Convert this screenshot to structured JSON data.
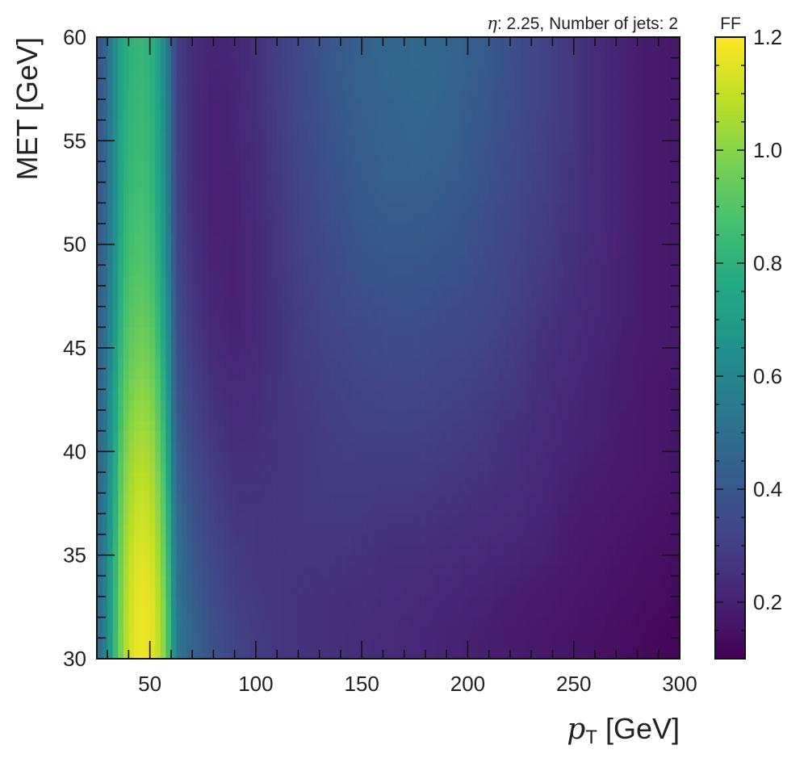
{
  "chart_data": {
    "type": "heatmap",
    "annotation": {
      "eta_symbol": "η",
      "eta_text": ": 2.25, Number of jets: 2"
    },
    "xlabel": {
      "symbol": "p",
      "subscript": "T",
      "unit": " [GeV]"
    },
    "ylabel": "MET [GeV]",
    "xlim": [
      25,
      300
    ],
    "ylim": [
      30,
      60
    ],
    "xticks": [
      50,
      100,
      150,
      200,
      250,
      300
    ],
    "xtick_labels": [
      "50",
      "100",
      "150",
      "200",
      "250",
      "300"
    ],
    "yticks": [
      30,
      35,
      40,
      45,
      50,
      55,
      60
    ],
    "ytick_labels": [
      "30",
      "35",
      "40",
      "45",
      "50",
      "55",
      "60"
    ],
    "colorbar": {
      "label": "FF",
      "colormap": "viridis",
      "range": [
        0.1,
        1.2
      ],
      "ticks": [
        0.2,
        0.4,
        0.6,
        0.8,
        1.0,
        1.2
      ],
      "tick_labels": [
        "0.2",
        "0.4",
        "0.6",
        "0.8",
        "1.0",
        "1.2"
      ]
    },
    "x_centers": [
      27.5,
      32.5,
      37.5,
      42.5,
      47.5,
      52.5,
      57.5,
      62.5,
      70,
      80,
      90,
      100,
      112.5,
      125,
      137.5,
      150,
      162.5,
      175,
      187.5,
      200,
      212.5,
      225,
      237.5,
      250,
      262.5,
      275,
      287.5,
      300
    ],
    "y_centers": [
      31,
      33,
      35,
      37,
      39,
      41,
      43,
      45,
      47,
      49,
      51,
      53,
      55,
      57,
      59
    ],
    "values": [
      [
        0.5,
        0.78,
        1.05,
        1.16,
        1.18,
        1.14,
        0.98,
        0.55,
        0.45,
        0.37,
        0.32,
        0.29,
        0.27,
        0.26,
        0.25,
        0.24,
        0.23,
        0.22,
        0.21,
        0.2,
        0.19,
        0.18,
        0.17,
        0.16,
        0.15,
        0.14,
        0.13,
        0.12
      ],
      [
        0.5,
        0.77,
        1.04,
        1.15,
        1.17,
        1.13,
        0.96,
        0.53,
        0.43,
        0.35,
        0.3,
        0.28,
        0.27,
        0.26,
        0.25,
        0.25,
        0.24,
        0.23,
        0.22,
        0.21,
        0.2,
        0.19,
        0.18,
        0.17,
        0.16,
        0.15,
        0.14,
        0.13
      ],
      [
        0.5,
        0.76,
        1.02,
        1.13,
        1.15,
        1.1,
        0.92,
        0.51,
        0.41,
        0.33,
        0.29,
        0.27,
        0.27,
        0.27,
        0.27,
        0.26,
        0.25,
        0.25,
        0.24,
        0.23,
        0.22,
        0.21,
        0.2,
        0.18,
        0.17,
        0.16,
        0.15,
        0.14
      ],
      [
        0.49,
        0.74,
        1.0,
        1.1,
        1.12,
        1.07,
        0.88,
        0.49,
        0.38,
        0.31,
        0.27,
        0.27,
        0.27,
        0.28,
        0.28,
        0.28,
        0.27,
        0.27,
        0.26,
        0.25,
        0.24,
        0.23,
        0.21,
        0.19,
        0.18,
        0.17,
        0.16,
        0.15
      ],
      [
        0.48,
        0.72,
        0.97,
        1.07,
        1.09,
        1.03,
        0.84,
        0.46,
        0.36,
        0.29,
        0.26,
        0.26,
        0.27,
        0.28,
        0.29,
        0.29,
        0.29,
        0.29,
        0.28,
        0.27,
        0.26,
        0.24,
        0.22,
        0.2,
        0.19,
        0.18,
        0.17,
        0.16
      ],
      [
        0.47,
        0.7,
        0.94,
        1.03,
        1.05,
        0.99,
        0.8,
        0.43,
        0.33,
        0.27,
        0.24,
        0.25,
        0.27,
        0.28,
        0.3,
        0.31,
        0.31,
        0.31,
        0.3,
        0.29,
        0.27,
        0.25,
        0.23,
        0.21,
        0.2,
        0.18,
        0.17,
        0.16
      ],
      [
        0.46,
        0.68,
        0.91,
        0.99,
        1.01,
        0.95,
        0.76,
        0.4,
        0.31,
        0.25,
        0.23,
        0.24,
        0.27,
        0.29,
        0.31,
        0.32,
        0.33,
        0.33,
        0.32,
        0.31,
        0.29,
        0.27,
        0.24,
        0.22,
        0.2,
        0.19,
        0.17,
        0.16
      ],
      [
        0.45,
        0.66,
        0.88,
        0.95,
        0.97,
        0.91,
        0.72,
        0.38,
        0.29,
        0.23,
        0.21,
        0.23,
        0.27,
        0.3,
        0.32,
        0.34,
        0.35,
        0.35,
        0.34,
        0.33,
        0.31,
        0.28,
        0.25,
        0.23,
        0.21,
        0.19,
        0.18,
        0.17
      ],
      [
        0.44,
        0.64,
        0.85,
        0.92,
        0.93,
        0.87,
        0.69,
        0.36,
        0.27,
        0.22,
        0.2,
        0.23,
        0.27,
        0.31,
        0.34,
        0.36,
        0.37,
        0.37,
        0.36,
        0.35,
        0.33,
        0.3,
        0.27,
        0.24,
        0.22,
        0.2,
        0.18,
        0.17
      ],
      [
        0.43,
        0.62,
        0.83,
        0.89,
        0.9,
        0.84,
        0.66,
        0.34,
        0.26,
        0.21,
        0.2,
        0.23,
        0.28,
        0.32,
        0.35,
        0.38,
        0.39,
        0.39,
        0.38,
        0.37,
        0.34,
        0.31,
        0.28,
        0.25,
        0.22,
        0.2,
        0.18,
        0.17
      ],
      [
        0.42,
        0.61,
        0.81,
        0.87,
        0.88,
        0.82,
        0.64,
        0.33,
        0.25,
        0.2,
        0.2,
        0.23,
        0.28,
        0.33,
        0.37,
        0.4,
        0.41,
        0.41,
        0.4,
        0.38,
        0.35,
        0.32,
        0.29,
        0.26,
        0.23,
        0.2,
        0.18,
        0.17
      ],
      [
        0.41,
        0.6,
        0.79,
        0.85,
        0.86,
        0.8,
        0.62,
        0.32,
        0.24,
        0.2,
        0.2,
        0.24,
        0.29,
        0.34,
        0.38,
        0.41,
        0.43,
        0.43,
        0.42,
        0.4,
        0.37,
        0.33,
        0.3,
        0.26,
        0.23,
        0.2,
        0.18,
        0.17
      ],
      [
        0.41,
        0.6,
        0.78,
        0.84,
        0.85,
        0.79,
        0.61,
        0.31,
        0.24,
        0.2,
        0.21,
        0.24,
        0.3,
        0.35,
        0.39,
        0.42,
        0.44,
        0.45,
        0.44,
        0.41,
        0.38,
        0.34,
        0.3,
        0.27,
        0.23,
        0.2,
        0.18,
        0.17
      ],
      [
        0.4,
        0.59,
        0.77,
        0.83,
        0.84,
        0.78,
        0.6,
        0.31,
        0.24,
        0.2,
        0.21,
        0.25,
        0.3,
        0.36,
        0.4,
        0.43,
        0.45,
        0.46,
        0.45,
        0.42,
        0.39,
        0.35,
        0.31,
        0.27,
        0.23,
        0.2,
        0.18,
        0.17
      ],
      [
        0.4,
        0.59,
        0.77,
        0.82,
        0.83,
        0.77,
        0.59,
        0.3,
        0.24,
        0.21,
        0.22,
        0.25,
        0.31,
        0.36,
        0.41,
        0.44,
        0.46,
        0.47,
        0.46,
        0.43,
        0.4,
        0.35,
        0.31,
        0.27,
        0.23,
        0.2,
        0.18,
        0.17
      ]
    ]
  }
}
